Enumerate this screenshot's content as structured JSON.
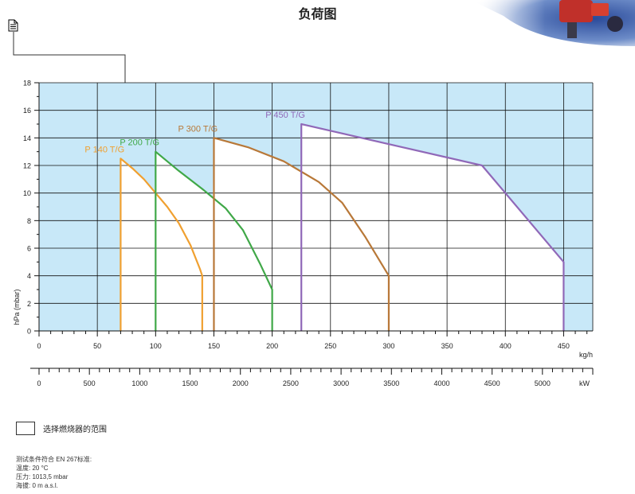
{
  "page": {
    "title": "负荷图",
    "legend_label": "选择燃烧器的范围",
    "conditions": [
      "测试条件符合 EN 267标准:",
      "温度: 20 °C",
      "压力: 1013,5 mbar",
      "海拔: 0 m a.s.l."
    ]
  },
  "icons": {
    "document": "document-icon",
    "corner_image": "burner-photo-corner"
  },
  "chart_data": {
    "type": "area",
    "title": "",
    "xlabel": "kg/h",
    "x2label": "kW",
    "ylabel": "hPa (mbar)",
    "xlim": [
      0,
      475
    ],
    "ylim": [
      0,
      18
    ],
    "x2lim": [
      0,
      5500
    ],
    "xticks": [
      0,
      50,
      100,
      150,
      200,
      250,
      300,
      350,
      400,
      450
    ],
    "yticks": [
      0,
      2,
      4,
      6,
      8,
      10,
      12,
      14,
      16,
      18
    ],
    "x2ticks": [
      0,
      500,
      1000,
      1500,
      2000,
      2500,
      3000,
      3500,
      4000,
      4500,
      5000
    ],
    "grid": true,
    "background_color": "#c8e8f8",
    "series": [
      {
        "name": "P 140 T/G",
        "color": "#f0a030",
        "points": [
          [
            70,
            0
          ],
          [
            70,
            12.5
          ],
          [
            80,
            11.8
          ],
          [
            90,
            11
          ],
          [
            100,
            10
          ],
          [
            110,
            9
          ],
          [
            120,
            7.8
          ],
          [
            130,
            6.2
          ],
          [
            138,
            4.5
          ],
          [
            140,
            4
          ],
          [
            140,
            0
          ]
        ]
      },
      {
        "name": "P 200 T/G",
        "color": "#40a848",
        "points": [
          [
            100,
            0
          ],
          [
            100,
            13
          ],
          [
            120,
            11.6
          ],
          [
            140,
            10.3
          ],
          [
            160,
            8.9
          ],
          [
            175,
            7.3
          ],
          [
            190,
            4.8
          ],
          [
            200,
            3
          ],
          [
            200,
            0
          ]
        ]
      },
      {
        "name": "P 300 T/G",
        "color": "#b87838",
        "points": [
          [
            150,
            0
          ],
          [
            150,
            14
          ],
          [
            180,
            13.3
          ],
          [
            210,
            12.3
          ],
          [
            240,
            10.8
          ],
          [
            260,
            9.3
          ],
          [
            280,
            6.8
          ],
          [
            300,
            4
          ],
          [
            300,
            0
          ]
        ]
      },
      {
        "name": "P 450 T/G",
        "color": "#9068b8",
        "points": [
          [
            225,
            0
          ],
          [
            225,
            15
          ],
          [
            380,
            12
          ],
          [
            450,
            5
          ],
          [
            450,
            0
          ]
        ]
      }
    ]
  }
}
